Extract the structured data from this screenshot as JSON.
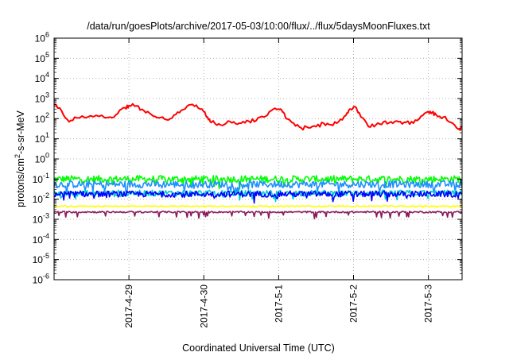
{
  "chart_data": {
    "type": "line",
    "title": "/data/run/goesPlots/archive/2017-05-03/10:00/flux/../flux/5daysMoonFluxes.txt",
    "xlabel": "Coordinated Universal Time (UTC)",
    "ylabel": {
      "base": "protons/cm",
      "sup": "2",
      "rest": "-s-sr-MeV"
    },
    "y_scale": "log",
    "ylim_exp": [
      -6,
      6
    ],
    "xlim": [
      0,
      5.45
    ],
    "x_axis_note": "x values are days since 2017-04-28 00:00 UTC (estimated)",
    "x_ticks": [
      {
        "x": 1,
        "label": "2017-4-29"
      },
      {
        "x": 2,
        "label": "2017-4-30"
      },
      {
        "x": 3,
        "label": "2017-5-1"
      },
      {
        "x": 4,
        "label": "2017-5-2"
      },
      {
        "x": 5,
        "label": "2017-5-3"
      }
    ],
    "y_ticks": [
      {
        "exp": 6,
        "base": "10",
        "sup": "6"
      },
      {
        "exp": 5,
        "base": "10",
        "sup": "5"
      },
      {
        "exp": 4,
        "base": "10",
        "sup": "4"
      },
      {
        "exp": 3,
        "base": "10",
        "sup": "3"
      },
      {
        "exp": 2,
        "base": "10",
        "sup": "2"
      },
      {
        "exp": 1,
        "base": "10",
        "sup": "1"
      },
      {
        "exp": 0,
        "base": "10",
        "sup": "0"
      },
      {
        "exp": -1,
        "base": "10",
        "sup": "-1"
      },
      {
        "exp": -2,
        "base": "10",
        "sup": "-2"
      },
      {
        "exp": -3,
        "base": "10",
        "sup": "-3"
      },
      {
        "exp": -4,
        "base": "10",
        "sup": "-4"
      },
      {
        "exp": -5,
        "base": "10",
        "sup": "-5"
      },
      {
        "exp": -6,
        "base": "10",
        "sup": "-6"
      }
    ],
    "grid": "dotted",
    "legend": "none",
    "series": [
      {
        "color": "#ff0000",
        "style": "smooth",
        "x": [
          0,
          0.1,
          0.2,
          0.3,
          0.45,
          0.6,
          0.75,
          0.85,
          0.95,
          1.0,
          1.1,
          1.2,
          1.3,
          1.4,
          1.5,
          1.6,
          1.7,
          1.8,
          1.9,
          2.0,
          2.05,
          2.1,
          2.2,
          2.3,
          2.4,
          2.5,
          2.6,
          2.7,
          2.8,
          2.9,
          3.0,
          3.05,
          3.1,
          3.2,
          3.3,
          3.4,
          3.5,
          3.6,
          3.7,
          3.8,
          3.9,
          3.95,
          4.0,
          4.05,
          4.1,
          4.2,
          4.3,
          4.4,
          4.5,
          4.6,
          4.7,
          4.8,
          4.9,
          5.0,
          5.05,
          5.1,
          5.2,
          5.3,
          5.4,
          5.45
        ],
        "y": [
          500,
          250,
          70,
          110,
          120,
          130,
          120,
          180,
          350,
          450,
          430,
          250,
          160,
          110,
          90,
          150,
          260,
          480,
          470,
          220,
          120,
          65,
          55,
          60,
          70,
          60,
          75,
          80,
          120,
          250,
          300,
          220,
          100,
          60,
          35,
          35,
          40,
          60,
          50,
          70,
          150,
          300,
          380,
          250,
          120,
          40,
          50,
          70,
          70,
          70,
          65,
          60,
          130,
          230,
          200,
          160,
          120,
          65,
          30,
          35
        ]
      },
      {
        "color": "#00ff00",
        "style": "noisy",
        "base": 0.1,
        "amp": 0.35,
        "dip_amp": 0.7
      },
      {
        "color": "#1e90ff",
        "style": "noisy",
        "base": 0.055,
        "amp": 0.35,
        "dip_amp": 0.8
      },
      {
        "color": "#00cdcd",
        "style": "noisy",
        "base": 0.02,
        "amp": 0.3,
        "dip_amp": 0.7
      },
      {
        "color": "#0000ff",
        "style": "noisy",
        "base": 0.018,
        "amp": 0.3,
        "dip_amp": 0.7
      },
      {
        "color": "#ffff00",
        "style": "noisy",
        "base": 0.0045,
        "amp": 0.05,
        "dip_amp": 0.1
      },
      {
        "color": "#8b1a5a",
        "style": "noisy",
        "base": 0.0023,
        "amp": 0.08,
        "dip_amp": 0.6
      }
    ]
  }
}
